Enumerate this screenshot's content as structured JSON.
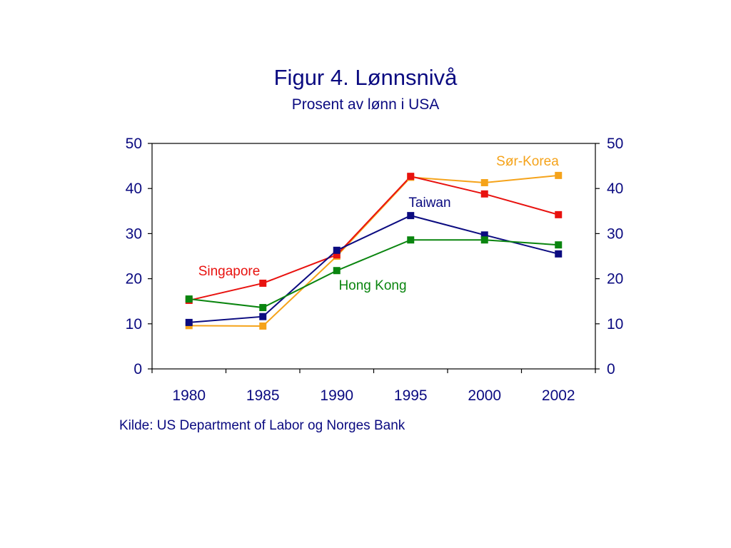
{
  "chart_data": {
    "type": "line",
    "title": "Figur 4. Lønnsnivå",
    "subtitle": "Prosent av lønn i USA",
    "categories": [
      "1980",
      "1985",
      "1990",
      "1995",
      "2000",
      "2002"
    ],
    "ylim": [
      0,
      50
    ],
    "y_ticks": [
      "0",
      "10",
      "20",
      "30",
      "40",
      "50"
    ],
    "y_ticks_right": [
      "0",
      "10",
      "20",
      "30",
      "40",
      "50"
    ],
    "grid": false,
    "legend": "inline labels",
    "series": [
      {
        "name": "Sør-Korea",
        "color": "#f5a31a",
        "values": [
          9.6,
          9.5,
          25.0,
          42.5,
          41.3,
          42.9
        ]
      },
      {
        "name": "Singapore",
        "color": "#e8120f",
        "values": [
          15.2,
          19.0,
          25.3,
          42.7,
          38.8,
          34.2
        ]
      },
      {
        "name": "Taiwan",
        "color": "#0b0b80",
        "values": [
          10.3,
          11.6,
          26.3,
          34.0,
          29.7,
          25.5
        ]
      },
      {
        "name": "Hong Kong",
        "color": "#0a850f",
        "values": [
          15.5,
          13.6,
          21.8,
          28.6,
          28.6,
          27.5
        ]
      }
    ]
  },
  "source": "Kilde: US Department of Labor og Norges Bank"
}
